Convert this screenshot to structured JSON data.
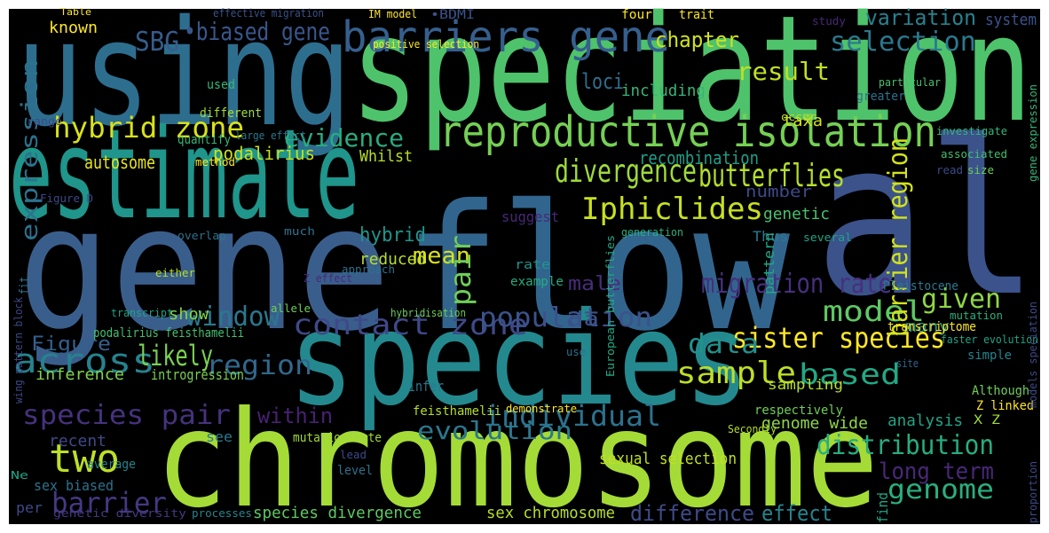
{
  "words": [
    {
      "text": "using",
      "color": "#2d6e8e"
    },
    {
      "text": "speciation",
      "color": "#4ec36b"
    },
    {
      "text": "estimate",
      "color": "#1f958b"
    },
    {
      "text": "gene",
      "color": "#3a5e8c"
    },
    {
      "text": "flow",
      "color": "#32658e"
    },
    {
      "text": "al",
      "color": "#3b528b"
    },
    {
      "text": "species",
      "color": "#23898e"
    },
    {
      "text": "chromosome",
      "color": "#a5db36"
    },
    {
      "text": "reproductive isolation",
      "color": "#75d054"
    },
    {
      "text": "barriers gene",
      "color": "#355f8d"
    },
    {
      "text": "divergence",
      "color": "#9fda3a"
    },
    {
      "text": "butterflies",
      "color": "#b5de2b"
    },
    {
      "text": "Iphiclides",
      "color": "#c8e020"
    },
    {
      "text": "hybrid zone",
      "color": "#d8e219"
    },
    {
      "text": "contact zone",
      "color": "#3e4989"
    },
    {
      "text": "sister species",
      "color": "#fde725"
    },
    {
      "text": "sample",
      "color": "#bddf26"
    },
    {
      "text": "data",
      "color": "#21918c"
    },
    {
      "text": "based",
      "color": "#22a884"
    },
    {
      "text": "across",
      "color": "#26828e"
    },
    {
      "text": "region",
      "color": "#31688e"
    },
    {
      "text": "species pair",
      "color": "#46327e"
    },
    {
      "text": "two",
      "color": "#bddf26"
    },
    {
      "text": "barrier",
      "color": "#443983"
    },
    {
      "text": "individual",
      "color": "#2c728e"
    },
    {
      "text": "evolution",
      "color": "#2a788e"
    },
    {
      "text": "population",
      "color": "#3b528b"
    },
    {
      "text": "model",
      "color": "#5ec962"
    },
    {
      "text": "likely",
      "color": "#7ad151"
    },
    {
      "text": "window",
      "color": "#2a788e"
    },
    {
      "text": "selection",
      "color": "#2a788e"
    },
    {
      "text": "variation",
      "color": "#26828e"
    },
    {
      "text": "system",
      "color": "#3b528b"
    },
    {
      "text": "result",
      "color": "#c2df23"
    },
    {
      "text": "chapter",
      "color": "#d0e11c"
    },
    {
      "text": "loci",
      "color": "#2e6f8e"
    },
    {
      "text": "SBG",
      "color": "#365c8d"
    },
    {
      "text": "•biased gene",
      "color": "#39568c"
    },
    {
      "text": "evidence",
      "color": "#27ad81"
    },
    {
      "text": "expression",
      "color": "#2c728e"
    },
    {
      "text": "autosome",
      "color": "#e5e419"
    },
    {
      "text": "podalirius",
      "color": "#c8e020"
    },
    {
      "text": "Whilst",
      "color": "#b8de29"
    },
    {
      "text": "recombination",
      "color": "#1f9e89"
    },
    {
      "text": "migration rate",
      "color": "#46307e"
    },
    {
      "text": "barrier region",
      "color": "#d2e21b"
    },
    {
      "text": "given",
      "color": "#8fd744"
    },
    {
      "text": "genome",
      "color": "#29af7f"
    },
    {
      "text": "distribution",
      "color": "#27ad81"
    },
    {
      "text": "long term",
      "color": "#482878"
    },
    {
      "text": "difference",
      "color": "#3e4a89"
    },
    {
      "text": "effect",
      "color": "#25848e"
    },
    {
      "text": "hybrid",
      "color": "#1f968b"
    },
    {
      "text": "reduced",
      "color": "#b8de29"
    },
    {
      "text": "mean",
      "color": "#d8e219"
    },
    {
      "text": "pair",
      "color": "#6ece58"
    },
    {
      "text": "male",
      "color": "#472d7b"
    },
    {
      "text": "da",
      "color": "#3b528b"
    },
    {
      "text": "Figure",
      "color": "#355f8d"
    },
    {
      "text": "within",
      "color": "#482173"
    },
    {
      "text": "show",
      "color": "#85d54a"
    },
    {
      "text": "inference",
      "color": "#7fd34e"
    },
    {
      "text": "introgression",
      "color": "#7ad151"
    },
    {
      "text": "genetic",
      "color": "#4ac16d"
    },
    {
      "text": "number",
      "color": "#3e4989"
    },
    {
      "text": "many",
      "color": "#21918c"
    },
    {
      "text": "Thus",
      "color": "#2a788e"
    },
    {
      "text": "pattern",
      "color": "#22a884"
    },
    {
      "text": "taxa",
      "color": "#d0e11c"
    },
    {
      "text": "including",
      "color": "#35b779"
    },
    {
      "text": "known",
      "color": "#fde725"
    },
    {
      "text": "sex biased",
      "color": "#2c728e"
    },
    {
      "text": "per",
      "color": "#3e4989"
    },
    {
      "text": "sexual selection",
      "color": "#c2df23"
    },
    {
      "text": "sex chromosome",
      "color": "#b5de2b"
    },
    {
      "text": "species divergence",
      "color": "#5ec962"
    },
    {
      "text": "analysis",
      "color": "#20a486"
    },
    {
      "text": "genome wide",
      "color": "#8fd744"
    },
    {
      "text": "recent",
      "color": "#3e4989"
    },
    {
      "text": "see",
      "color": "#2a788e"
    },
    {
      "text": "mutation rate",
      "color": "#a0da39"
    },
    {
      "text": "feisthamelii",
      "color": "#b5de2b"
    },
    {
      "text": "respectively",
      "color": "#6ece58"
    },
    {
      "text": "sampling",
      "color": "#b5de2b"
    },
    {
      "text": "Although",
      "color": "#6ece58"
    },
    {
      "text": "Z linked",
      "color": "#fde725"
    },
    {
      "text": "X Z",
      "color": "#a0da39"
    },
    {
      "text": "Pleistocene",
      "color": "#2a788e"
    },
    {
      "text": "transcriptome",
      "color": "#fde725"
    },
    {
      "text": "IM model",
      "color": "#fde725"
    },
    {
      "text": "•BDMI",
      "color": "#3b528b"
    },
    {
      "text": "positive selection",
      "color": "#fde725"
    },
    {
      "text": "effective migration",
      "color": "#3b528b"
    },
    {
      "text": "Table",
      "color": "#fde725"
    },
    {
      "text": "four",
      "color": "#fde725"
    },
    {
      "text": "trait",
      "color": "#fde725"
    },
    {
      "text": "study",
      "color": "#482878"
    },
    {
      "text": "different",
      "color": "#a0da39"
    },
    {
      "text": "used",
      "color": "#35b779"
    },
    {
      "text": "quantify",
      "color": "#35b779"
    },
    {
      "text": "large effect",
      "color": "#2a788e"
    },
    {
      "text": "suggest",
      "color": "#482878"
    },
    {
      "text": "rate",
      "color": "#1f968b"
    },
    {
      "text": "example",
      "color": "#25ab82"
    },
    {
      "text": "genetic diversity",
      "color": "#443983"
    },
    {
      "text": "processes",
      "color": "#25848e"
    },
    {
      "text": "Secondly",
      "color": "#b5de2b"
    },
    {
      "text": "average",
      "color": "#25848e"
    },
    {
      "text": "lead",
      "color": "#3e4989"
    },
    {
      "text": "level",
      "color": "#2c728e"
    },
    {
      "text": "demonstrate",
      "color": "#fde725"
    },
    {
      "text": "infer",
      "color": "#2a788e"
    },
    {
      "text": "use",
      "color": "#2c728e"
    },
    {
      "text": "site",
      "color": "#33638d"
    },
    {
      "text": "simple",
      "color": "#25848e"
    },
    {
      "text": "faster evolution",
      "color": "#20a486"
    },
    {
      "text": "mutation",
      "color": "#29af7f"
    },
    {
      "text": "Ne",
      "color": "#20a486"
    },
    {
      "text": "investigate",
      "color": "#35b779"
    },
    {
      "text": "read",
      "color": "#3e4a89"
    },
    {
      "text": "size",
      "color": "#6ece58"
    },
    {
      "text": "associated",
      "color": "#44bf70"
    },
    {
      "text": "greater",
      "color": "#2c728e"
    },
    {
      "text": "particular",
      "color": "#4ac16d"
    },
    {
      "text": "occur",
      "color": "#b5de2b"
    },
    {
      "text": "several",
      "color": "#20a486"
    },
    {
      "text": "generation",
      "color": "#29af7f"
    },
    {
      "text": "much",
      "color": "#2c728e"
    },
    {
      "text": "overlap",
      "color": "#2c728e"
    },
    {
      "text": "method",
      "color": "#fde725"
    },
    {
      "text": "range",
      "color": "#3e4989"
    },
    {
      "text": "Figure D",
      "color": "#3e4989"
    },
    {
      "text": "either",
      "color": "#b5de2b"
    },
    {
      "text": "approach",
      "color": "#2c728e"
    },
    {
      "text": "transcript",
      "color": "#20a486"
    },
    {
      "text": "allele",
      "color": "#6ece58"
    },
    {
      "text": "hybridisation",
      "color": "#6ece58"
    },
    {
      "text": "podalirius feisthamelii",
      "color": "#44bf70"
    },
    {
      "text": "Z effect",
      "color": "#482878"
    },
    {
      "text": "European butterflies",
      "color": "#22a884"
    },
    {
      "text": "models speciation",
      "color": "#3e4989"
    },
    {
      "text": "gene expression",
      "color": "#35b779"
    },
    {
      "text": "proportion",
      "color": "#3e4989"
    },
    {
      "text": "wing pattern block",
      "color": "#3e4989"
    },
    {
      "text": "fit",
      "color": "#2c728e"
    },
    {
      "text": "find",
      "color": "#20a486"
    }
  ]
}
